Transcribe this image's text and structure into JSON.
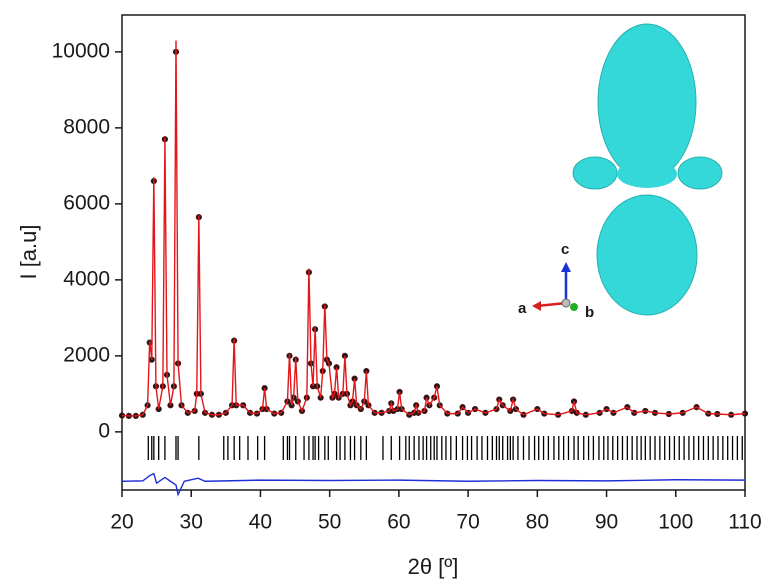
{
  "chart_data": {
    "type": "line",
    "x_label": "2θ [º]",
    "y_label": "I [a.u]",
    "xlim": [
      20,
      110
    ],
    "ylim": [
      -1530,
      10970
    ],
    "xticks": [
      20,
      30,
      40,
      50,
      60,
      70,
      80,
      90,
      100,
      110
    ],
    "yticks": [
      0,
      2000,
      4000,
      6000,
      8000,
      10000
    ],
    "series": [
      {
        "marker": "circle",
        "color": "#1a1a1a",
        "x": [
          20,
          21,
          22,
          23,
          23.7,
          24.0,
          24.3,
          24.6,
          24.9,
          25.3,
          25.9,
          26.2,
          26.5,
          27.0,
          27.5,
          27.8,
          28.1,
          28.6,
          29.5,
          30.5,
          30.8,
          31.1,
          31.4,
          32,
          33,
          34,
          35,
          35.9,
          36.2,
          36.5,
          37.5,
          38.5,
          39.5,
          40.3,
          40.6,
          40.9,
          42,
          43,
          43.9,
          44.2,
          44.5,
          44.8,
          45.1,
          45.4,
          46,
          46.7,
          47.0,
          47.3,
          47.6,
          47.9,
          48.2,
          48.7,
          49.0,
          49.3,
          49.6,
          49.9,
          50.4,
          50.7,
          51.0,
          51.3,
          51.9,
          52.2,
          52.5,
          53.0,
          53.3,
          53.6,
          53.9,
          54.5,
          55.0,
          55.3,
          55.6,
          56.5,
          57.5,
          58.6,
          58.9,
          59.2,
          59.8,
          60.1,
          60.4,
          61.5,
          62.2,
          62.5,
          62.8,
          63.7,
          64.0,
          64.4,
          65.1,
          65.5,
          65.9,
          67,
          68.5,
          69.2,
          70,
          71,
          72.5,
          74.1,
          74.5,
          75,
          76.1,
          76.5,
          76.9,
          78,
          80,
          81,
          83,
          85,
          85.3,
          85.7,
          87,
          89,
          90,
          91,
          93,
          94,
          95.6,
          97,
          99,
          101,
          103,
          104.7,
          106,
          108,
          110
        ],
        "values": [
          430,
          420,
          420,
          450,
          700,
          2350,
          1900,
          6600,
          1200,
          600,
          1200,
          7700,
          1500,
          700,
          1200,
          10000,
          1800,
          700,
          500,
          550,
          1000,
          5650,
          1000,
          500,
          450,
          450,
          500,
          700,
          2400,
          700,
          700,
          500,
          480,
          600,
          1150,
          600,
          480,
          500,
          800,
          2000,
          700,
          900,
          1900,
          800,
          550,
          900,
          4200,
          1800,
          1200,
          2700,
          1200,
          900,
          1600,
          3300,
          1900,
          1800,
          900,
          1000,
          1700,
          900,
          1000,
          2000,
          1000,
          700,
          800,
          1400,
          700,
          600,
          800,
          1600,
          700,
          500,
          500,
          550,
          750,
          550,
          600,
          1050,
          600,
          450,
          500,
          700,
          500,
          550,
          900,
          700,
          900,
          1200,
          700,
          480,
          480,
          650,
          500,
          600,
          500,
          600,
          850,
          700,
          550,
          850,
          600,
          450,
          600,
          480,
          450,
          550,
          800,
          500,
          450,
          500,
          600,
          500,
          650,
          500,
          550,
          500,
          470,
          500,
          650,
          480,
          470,
          450,
          480
        ]
      },
      {
        "marker": "line",
        "color": "#e3161b",
        "x": [
          20,
          21,
          22,
          23,
          23.7,
          24.0,
          24.3,
          24.6,
          24.9,
          25.3,
          25.9,
          26.2,
          26.5,
          27.0,
          27.5,
          27.8,
          28.1,
          28.6,
          29.5,
          30.5,
          30.8,
          31.1,
          31.4,
          32,
          33,
          34,
          35,
          35.9,
          36.2,
          36.5,
          37.5,
          38.5,
          39.5,
          40.3,
          40.6,
          40.9,
          42,
          43,
          43.9,
          44.2,
          44.5,
          44.8,
          45.1,
          45.4,
          46,
          46.7,
          47.0,
          47.3,
          47.6,
          47.9,
          48.2,
          48.7,
          49.0,
          49.3,
          49.6,
          49.9,
          50.4,
          50.7,
          51.0,
          51.3,
          51.9,
          52.2,
          52.5,
          53.0,
          53.3,
          53.6,
          53.9,
          54.5,
          55.0,
          55.3,
          55.6,
          56.5,
          57.5,
          58.6,
          58.9,
          59.2,
          59.8,
          60.1,
          60.4,
          61.5,
          62.2,
          62.5,
          62.8,
          63.7,
          64.0,
          64.4,
          65.1,
          65.5,
          65.9,
          67,
          68.5,
          69.2,
          70,
          71,
          72.5,
          74.1,
          74.5,
          75,
          76.1,
          76.5,
          76.9,
          78,
          80,
          81,
          83,
          85,
          85.3,
          85.7,
          87,
          89,
          90,
          91,
          93,
          94,
          95.6,
          97,
          99,
          101,
          103,
          104.7,
          106,
          108,
          110
        ],
        "values": [
          430,
          420,
          420,
          450,
          700,
          2400,
          1900,
          6700,
          1200,
          600,
          1200,
          7750,
          1500,
          700,
          1200,
          10300,
          1800,
          700,
          500,
          550,
          1000,
          5700,
          1000,
          500,
          450,
          450,
          500,
          700,
          2450,
          700,
          700,
          500,
          480,
          600,
          1150,
          600,
          480,
          500,
          800,
          2050,
          700,
          900,
          1950,
          800,
          550,
          900,
          4300,
          1800,
          1200,
          2750,
          1200,
          900,
          1600,
          3350,
          1900,
          1800,
          900,
          1000,
          1700,
          900,
          1000,
          2000,
          1000,
          700,
          800,
          1400,
          700,
          600,
          800,
          1600,
          700,
          500,
          500,
          550,
          750,
          550,
          600,
          1050,
          600,
          450,
          500,
          700,
          500,
          550,
          900,
          700,
          900,
          1200,
          700,
          480,
          480,
          650,
          500,
          600,
          500,
          600,
          850,
          700,
          550,
          850,
          600,
          450,
          600,
          480,
          450,
          550,
          800,
          500,
          450,
          500,
          600,
          500,
          650,
          500,
          550,
          500,
          470,
          500,
          650,
          480,
          470,
          450,
          480
        ]
      },
      {
        "marker": "line",
        "color": "#1f2fd6",
        "x": [
          20,
          23,
          24,
          24.6,
          25,
          26.2,
          27,
          27.8,
          28.1,
          29,
          31,
          32,
          35,
          40,
          50,
          60,
          70,
          80,
          90,
          100,
          110
        ],
        "values": [
          -1300,
          -1290,
          -1150,
          -1100,
          -1350,
          -1200,
          -1300,
          -1400,
          -1650,
          -1300,
          -1220,
          -1300,
          -1290,
          -1270,
          -1280,
          -1270,
          -1300,
          -1280,
          -1290,
          -1260,
          -1270
        ]
      }
    ],
    "bragg_positions": {
      "color": "#000000",
      "x": [
        23.8,
        24.3,
        24.6,
        25.3,
        26.2,
        27.8,
        28.1,
        31.1,
        34.7,
        35.3,
        36.2,
        37.0,
        38.2,
        39.6,
        40.6,
        43.3,
        43.9,
        44.2,
        45.1,
        46.3,
        47.0,
        47.6,
        47.9,
        48.4,
        49.3,
        49.8,
        51.0,
        51.5,
        52.2,
        53.0,
        53.6,
        54.5,
        55.3,
        57.7,
        58.9,
        60.1,
        61.0,
        61.5,
        62.2,
        62.9,
        63.5,
        64.0,
        64.6,
        65.1,
        65.5,
        66.2,
        66.8,
        67.5,
        68.3,
        69.2,
        69.9,
        70.5,
        71.3,
        72.0,
        72.8,
        73.5,
        74.1,
        74.5,
        75.0,
        75.7,
        76.1,
        76.5,
        77.2,
        78.0,
        78.8,
        79.6,
        80.2,
        80.9,
        81.6,
        82.4,
        83.1,
        83.8,
        84.5,
        85.3,
        85.9,
        86.7,
        87.4,
        88.1,
        88.9,
        89.6,
        90.2,
        90.9,
        91.6,
        92.3,
        93.0,
        93.7,
        94.4,
        95.0,
        95.6,
        96.3,
        97.0,
        97.7,
        98.4,
        99.1,
        99.8,
        100.5,
        101.2,
        101.9,
        102.6,
        103.3,
        104.0,
        104.7,
        105.4,
        106.1,
        106.8,
        107.5,
        108.2,
        108.9,
        109.6
      ]
    }
  },
  "inset": {
    "axis_labels": [
      "a",
      "b",
      "c"
    ]
  }
}
